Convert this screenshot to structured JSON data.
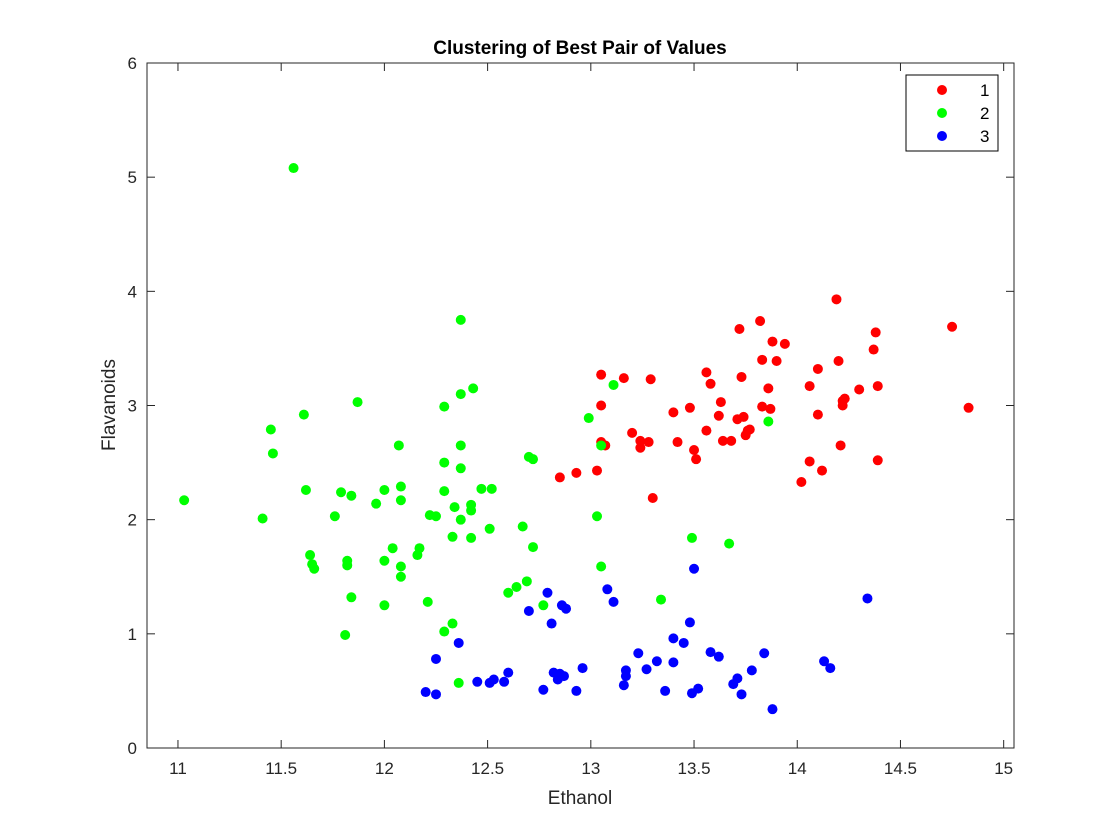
{
  "colors": {
    "1": "#ff0000",
    "2": "#00ff00",
    "3": "#0000ff",
    "axis": "#262626",
    "background": "#ffffff"
  },
  "chart_data": {
    "type": "scatter",
    "title": "Clustering of Best Pair of Values",
    "xlabel": "Ethanol",
    "ylabel": "Flavanoids",
    "xlim": [
      10.85,
      15.05
    ],
    "ylim": [
      0,
      6
    ],
    "xticks": [
      "11",
      "11.5",
      "12",
      "12.5",
      "13",
      "13.5",
      "14",
      "14.5",
      "15"
    ],
    "yticks": [
      "0",
      "1",
      "2",
      "3",
      "4",
      "5",
      "6"
    ],
    "grid": false,
    "legend": {
      "position": "top-right",
      "entries": [
        "1",
        "2",
        "3"
      ]
    },
    "series": [
      {
        "name": "1",
        "color": "#ff0000",
        "points": [
          [
            12.85,
            2.37
          ],
          [
            12.93,
            2.41
          ],
          [
            13.03,
            2.43
          ],
          [
            13.05,
            2.68
          ],
          [
            13.05,
            3.0
          ],
          [
            13.05,
            3.27
          ],
          [
            13.07,
            2.65
          ],
          [
            13.16,
            3.24
          ],
          [
            13.2,
            2.76
          ],
          [
            13.24,
            2.63
          ],
          [
            13.24,
            2.69
          ],
          [
            13.28,
            2.68
          ],
          [
            13.29,
            3.23
          ],
          [
            13.3,
            2.19
          ],
          [
            13.4,
            2.94
          ],
          [
            13.42,
            2.68
          ],
          [
            13.48,
            2.98
          ],
          [
            13.5,
            2.61
          ],
          [
            13.51,
            2.53
          ],
          [
            13.56,
            2.78
          ],
          [
            13.56,
            3.29
          ],
          [
            13.58,
            3.19
          ],
          [
            13.62,
            2.91
          ],
          [
            13.63,
            3.03
          ],
          [
            13.64,
            2.69
          ],
          [
            13.68,
            2.69
          ],
          [
            13.71,
            2.88
          ],
          [
            13.72,
            3.67
          ],
          [
            13.73,
            3.25
          ],
          [
            13.74,
            2.9
          ],
          [
            13.75,
            2.74
          ],
          [
            13.76,
            2.78
          ],
          [
            13.77,
            2.79
          ],
          [
            13.82,
            3.74
          ],
          [
            13.83,
            3.4
          ],
          [
            13.83,
            2.99
          ],
          [
            13.86,
            3.15
          ],
          [
            13.87,
            2.97
          ],
          [
            13.88,
            3.56
          ],
          [
            13.9,
            3.39
          ],
          [
            13.94,
            3.54
          ],
          [
            14.02,
            2.33
          ],
          [
            14.06,
            2.51
          ],
          [
            14.06,
            3.17
          ],
          [
            14.1,
            3.32
          ],
          [
            14.1,
            2.92
          ],
          [
            14.12,
            2.43
          ],
          [
            14.19,
            3.93
          ],
          [
            14.2,
            3.39
          ],
          [
            14.21,
            2.65
          ],
          [
            14.22,
            3.04
          ],
          [
            14.22,
            3.0
          ],
          [
            14.23,
            3.06
          ],
          [
            14.3,
            3.14
          ],
          [
            14.37,
            3.49
          ],
          [
            14.38,
            3.64
          ],
          [
            14.39,
            3.17
          ],
          [
            14.39,
            2.52
          ],
          [
            14.75,
            3.69
          ],
          [
            14.83,
            2.98
          ]
        ]
      },
      {
        "name": "2",
        "color": "#00ff00",
        "points": [
          [
            11.03,
            2.17
          ],
          [
            11.41,
            2.01
          ],
          [
            11.45,
            2.79
          ],
          [
            11.46,
            2.58
          ],
          [
            11.56,
            5.08
          ],
          [
            11.61,
            2.92
          ],
          [
            11.62,
            2.26
          ],
          [
            11.64,
            1.69
          ],
          [
            11.65,
            1.61
          ],
          [
            11.66,
            1.57
          ],
          [
            11.76,
            2.03
          ],
          [
            11.79,
            2.24
          ],
          [
            11.81,
            0.99
          ],
          [
            11.82,
            1.64
          ],
          [
            11.82,
            1.6
          ],
          [
            11.84,
            2.21
          ],
          [
            11.84,
            1.32
          ],
          [
            11.87,
            3.03
          ],
          [
            11.96,
            2.14
          ],
          [
            12.0,
            2.26
          ],
          [
            12.0,
            1.64
          ],
          [
            12.0,
            1.25
          ],
          [
            12.04,
            1.75
          ],
          [
            12.07,
            2.65
          ],
          [
            12.08,
            2.29
          ],
          [
            12.08,
            2.17
          ],
          [
            12.08,
            1.59
          ],
          [
            12.08,
            1.5
          ],
          [
            12.16,
            1.69
          ],
          [
            12.17,
            1.75
          ],
          [
            12.21,
            1.28
          ],
          [
            12.22,
            2.04
          ],
          [
            12.25,
            2.03
          ],
          [
            12.29,
            2.99
          ],
          [
            12.29,
            2.5
          ],
          [
            12.29,
            2.25
          ],
          [
            12.29,
            1.02
          ],
          [
            12.33,
            1.85
          ],
          [
            12.33,
            1.09
          ],
          [
            12.34,
            2.11
          ],
          [
            12.36,
            0.57
          ],
          [
            12.37,
            3.75
          ],
          [
            12.37,
            3.1
          ],
          [
            12.37,
            2.65
          ],
          [
            12.37,
            2.45
          ],
          [
            12.37,
            2.0
          ],
          [
            12.42,
            2.08
          ],
          [
            12.42,
            2.13
          ],
          [
            12.42,
            1.84
          ],
          [
            12.43,
            3.15
          ],
          [
            12.47,
            2.27
          ],
          [
            12.51,
            1.92
          ],
          [
            12.52,
            2.27
          ],
          [
            12.6,
            1.36
          ],
          [
            12.64,
            1.41
          ],
          [
            12.67,
            1.94
          ],
          [
            12.69,
            1.46
          ],
          [
            12.7,
            2.55
          ],
          [
            12.72,
            2.53
          ],
          [
            12.72,
            1.76
          ],
          [
            12.77,
            1.25
          ],
          [
            12.99,
            2.89
          ],
          [
            13.03,
            2.03
          ],
          [
            13.05,
            1.59
          ],
          [
            13.05,
            2.65
          ],
          [
            13.11,
            3.18
          ],
          [
            13.34,
            1.3
          ],
          [
            13.49,
            1.84
          ],
          [
            13.67,
            1.79
          ],
          [
            13.86,
            2.86
          ]
        ]
      },
      {
        "name": "3",
        "color": "#0000ff",
        "points": [
          [
            12.2,
            0.49
          ],
          [
            12.25,
            0.47
          ],
          [
            12.25,
            0.78
          ],
          [
            12.36,
            0.92
          ],
          [
            12.45,
            0.58
          ],
          [
            12.51,
            0.57
          ],
          [
            12.53,
            0.6
          ],
          [
            12.58,
            0.58
          ],
          [
            12.6,
            0.66
          ],
          [
            12.7,
            1.2
          ],
          [
            12.77,
            0.51
          ],
          [
            12.79,
            1.36
          ],
          [
            12.81,
            1.09
          ],
          [
            12.82,
            0.66
          ],
          [
            12.84,
            0.6
          ],
          [
            12.85,
            0.65
          ],
          [
            12.86,
            1.25
          ],
          [
            12.87,
            0.63
          ],
          [
            12.88,
            1.22
          ],
          [
            12.93,
            0.5
          ],
          [
            12.96,
            0.7
          ],
          [
            13.08,
            1.39
          ],
          [
            13.11,
            1.28
          ],
          [
            13.16,
            0.55
          ],
          [
            13.17,
            0.63
          ],
          [
            13.17,
            0.68
          ],
          [
            13.23,
            0.83
          ],
          [
            13.27,
            0.69
          ],
          [
            13.32,
            0.76
          ],
          [
            13.36,
            0.5
          ],
          [
            13.4,
            0.96
          ],
          [
            13.4,
            0.75
          ],
          [
            13.45,
            0.92
          ],
          [
            13.48,
            1.1
          ],
          [
            13.49,
            0.48
          ],
          [
            13.5,
            1.57
          ],
          [
            13.52,
            0.52
          ],
          [
            13.58,
            0.84
          ],
          [
            13.62,
            0.8
          ],
          [
            13.69,
            0.56
          ],
          [
            13.71,
            0.61
          ],
          [
            13.73,
            0.47
          ],
          [
            13.78,
            0.68
          ],
          [
            13.84,
            0.83
          ],
          [
            13.88,
            0.34
          ],
          [
            14.13,
            0.76
          ],
          [
            14.16,
            0.7
          ],
          [
            14.34,
            1.31
          ]
        ]
      }
    ]
  }
}
